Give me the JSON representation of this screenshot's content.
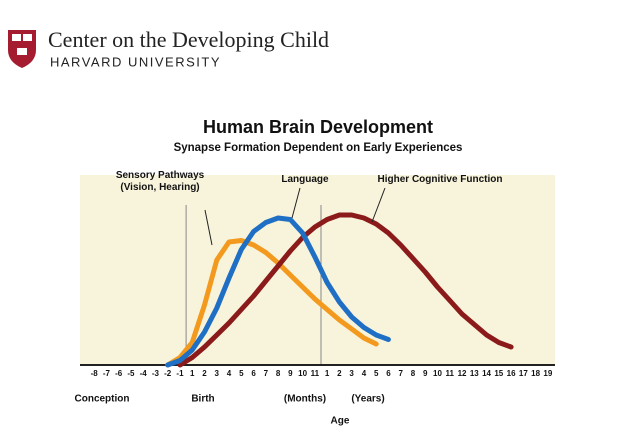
{
  "header": {
    "title": "Center on the Developing Child",
    "subtitle": "HARVARD UNIVERSITY"
  },
  "chart_data": {
    "type": "line",
    "title": "Human Brain Development",
    "subtitle": "Synapse Formation Dependent on Early Experiences",
    "categories": [
      "-8",
      "-7",
      "-6",
      "-5",
      "-4",
      "-3",
      "-2",
      "-1",
      "1",
      "2",
      "3",
      "4",
      "5",
      "6",
      "7",
      "8",
      "9",
      "10",
      "11",
      "1",
      "2",
      "3",
      "4",
      "5",
      "6",
      "7",
      "8",
      "9",
      "10",
      "11",
      "12",
      "13",
      "14",
      "15",
      "16",
      "17",
      "18",
      "19"
    ],
    "x_annotations": [
      "Conception",
      "Birth",
      "(Months)",
      "(Years)"
    ],
    "xlabel": "Age",
    "ylim": [
      0,
      100
    ],
    "series": [
      {
        "name": "Sensory Pathways (Vision, Hearing)",
        "color": "#f39a1e",
        "values": [
          null,
          null,
          null,
          null,
          null,
          null,
          0,
          5,
          15,
          40,
          70,
          82,
          83,
          80,
          75,
          68,
          60,
          52,
          44,
          37,
          30,
          24,
          18,
          14,
          null,
          null,
          null,
          null,
          null,
          null,
          null,
          null,
          null,
          null,
          null,
          null,
          null,
          null
        ]
      },
      {
        "name": "Higher Cognitive Function",
        "color": "#8b1a1a",
        "values": [
          null,
          null,
          null,
          null,
          null,
          null,
          null,
          0,
          5,
          12,
          20,
          28,
          37,
          46,
          56,
          66,
          76,
          85,
          92,
          97,
          100,
          100,
          98,
          94,
          88,
          80,
          71,
          62,
          52,
          43,
          34,
          27,
          20,
          15,
          12,
          null,
          null,
          null
        ]
      },
      {
        "name": "Language",
        "color": "#1f6fc4",
        "values": [
          null,
          null,
          null,
          null,
          null,
          null,
          0,
          3,
          10,
          22,
          38,
          58,
          77,
          89,
          95,
          98,
          97,
          88,
          72,
          55,
          42,
          32,
          25,
          20,
          17,
          null,
          null,
          null,
          null,
          null,
          null,
          null,
          null,
          null,
          null,
          null,
          null,
          null
        ]
      }
    ]
  }
}
